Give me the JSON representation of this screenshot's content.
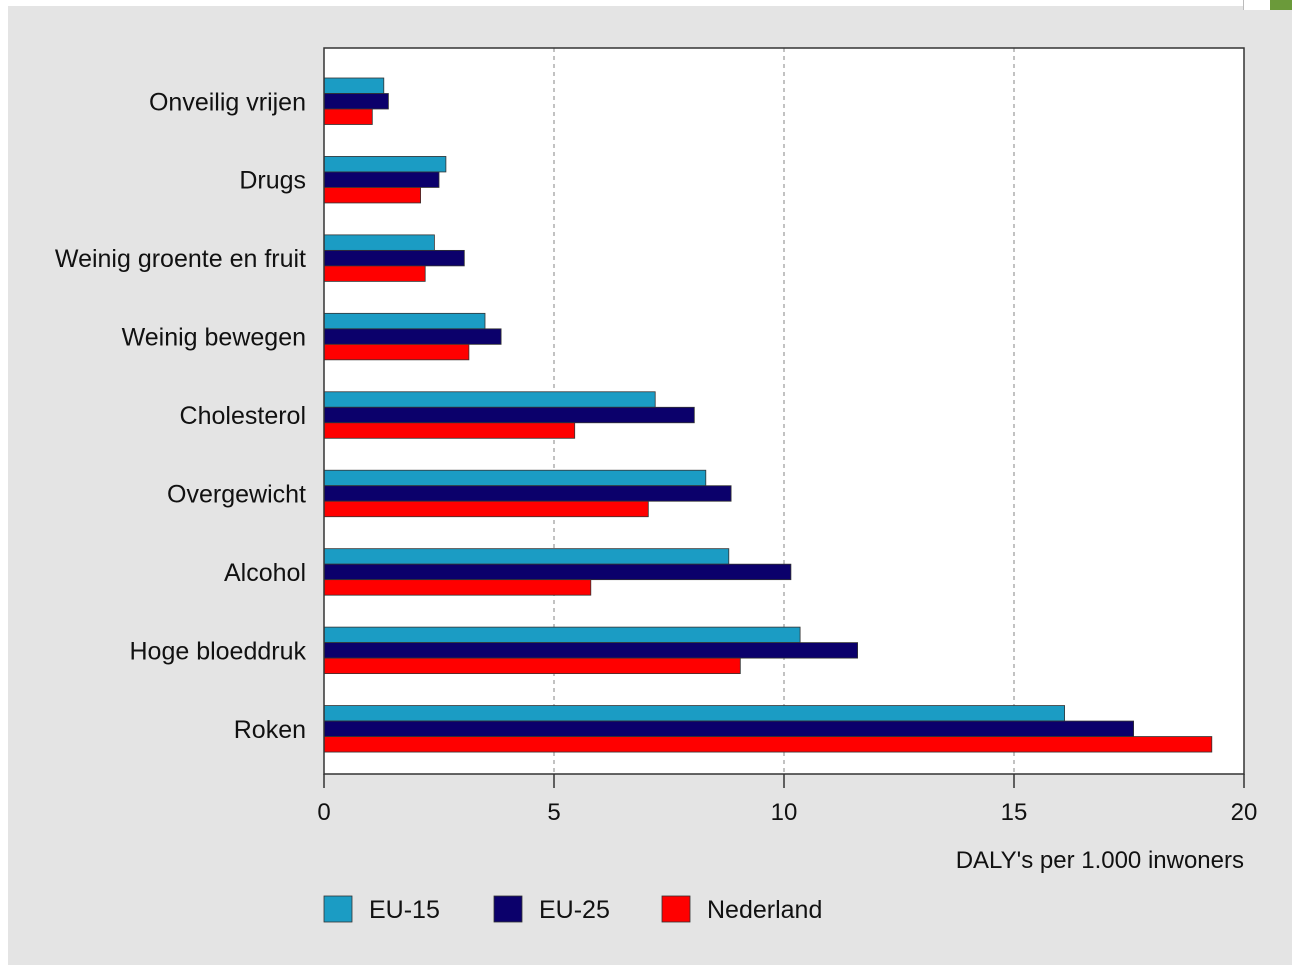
{
  "colors": {
    "panel_bg": "#e4e4e4",
    "plot_bg": "#ffffff",
    "gridline": "#9a9a9a",
    "axis": "#333333"
  },
  "chart_data": {
    "type": "bar",
    "orientation": "horizontal",
    "categories": [
      "Onveilig vrijen",
      "Drugs",
      "Weinig groente en fruit",
      "Weinig bewegen",
      "Cholesterol",
      "Overgewicht",
      "Alcohol",
      "Hoge bloeddruk",
      "Roken"
    ],
    "series": [
      {
        "name": "EU-15",
        "color": "#1b9cc4",
        "values": [
          1.3,
          2.65,
          2.4,
          3.5,
          7.2,
          8.3,
          8.8,
          10.35,
          16.1
        ]
      },
      {
        "name": "EU-25",
        "color": "#0b006b",
        "values": [
          1.4,
          2.5,
          3.05,
          3.85,
          8.05,
          8.85,
          10.15,
          11.6,
          17.6
        ]
      },
      {
        "name": "Nederland",
        "color": "#ff0000",
        "values": [
          1.05,
          2.1,
          2.2,
          3.15,
          5.45,
          7.05,
          5.8,
          9.05,
          19.3
        ]
      }
    ],
    "xlabel": "DALY's per 1.000 inwoners",
    "xlim": [
      0,
      20
    ],
    "xticks": [
      0,
      5,
      10,
      15,
      20
    ],
    "grid": "vertical dashed",
    "legend": "bottom-left"
  }
}
